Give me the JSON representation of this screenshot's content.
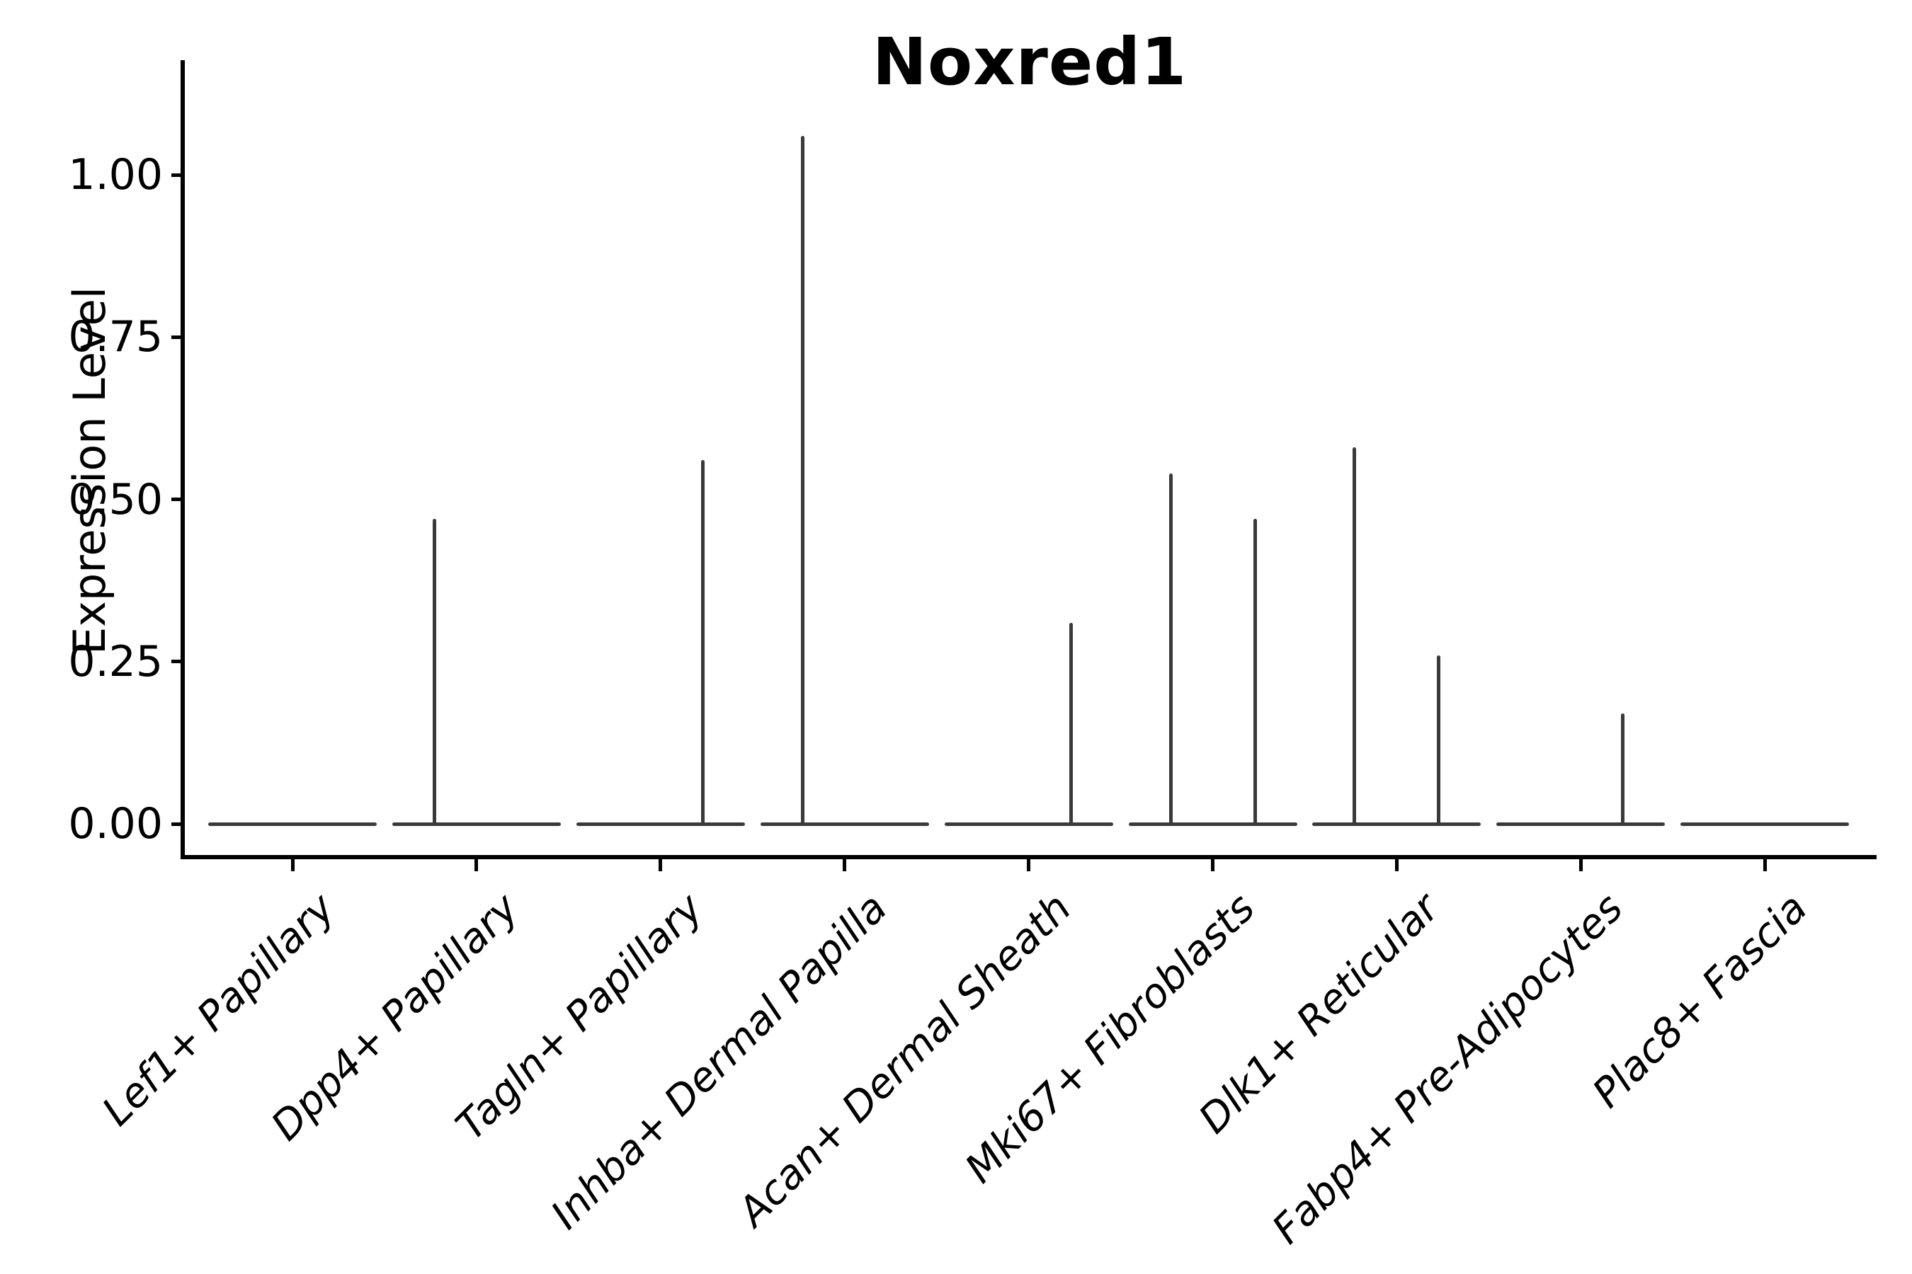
{
  "chart_data": {
    "type": "violin",
    "title": "Noxred1",
    "xlabel": "",
    "ylabel": "Expression Level",
    "legend": null,
    "grid": false,
    "ylim": [
      -0.05,
      1.18
    ],
    "yticks": [
      {
        "value": 0.0,
        "label": "0.00"
      },
      {
        "value": 0.25,
        "label": "0.25"
      },
      {
        "value": 0.5,
        "label": "0.50"
      },
      {
        "value": 0.75,
        "label": "0.75"
      },
      {
        "value": 1.0,
        "label": "1.00"
      }
    ],
    "baseline_value": 0.0,
    "description": "Violin plot of Noxred1 expression per fibroblast cluster; each category shows a flat density line at 0 with thin spikes (two half-width violins per category) reaching the maximum expression level.",
    "categories": [
      {
        "label": "Lef1+ Papillary",
        "spikes": []
      },
      {
        "label": "Dpp4+ Papillary",
        "spikes": [
          {
            "position": "left",
            "max": 0.47
          }
        ]
      },
      {
        "label": "Tagln+ Papillary",
        "spikes": [
          {
            "position": "right",
            "max": 0.56
          }
        ]
      },
      {
        "label": "Inhba+ Dermal Papilla",
        "spikes": [
          {
            "position": "left",
            "max": 1.06
          }
        ]
      },
      {
        "label": "Acan+ Dermal Sheath",
        "spikes": [
          {
            "position": "right",
            "max": 0.31
          }
        ]
      },
      {
        "label": "Mki67+ Fibroblasts",
        "spikes": [
          {
            "position": "left",
            "max": 0.54
          },
          {
            "position": "right",
            "max": 0.47
          }
        ]
      },
      {
        "label": "Dlk1+ Reticular",
        "spikes": [
          {
            "position": "left",
            "max": 0.58
          },
          {
            "position": "right",
            "max": 0.26
          }
        ]
      },
      {
        "label": "Fabp4+ Pre-Adipocytes",
        "spikes": [
          {
            "position": "right",
            "max": 0.17
          }
        ]
      },
      {
        "label": "Plac8+ Fascia",
        "spikes": []
      }
    ],
    "colors": {
      "violin_line": "#3a3a3a",
      "axis": "#000000",
      "text": "#000000"
    }
  }
}
